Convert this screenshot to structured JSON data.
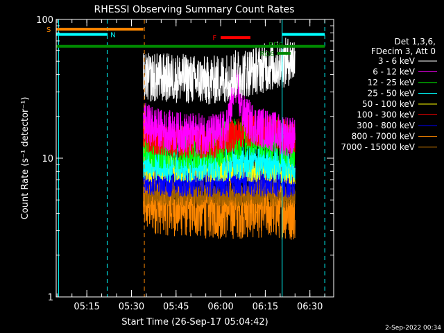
{
  "chart_data": {
    "type": "line",
    "title": "RHESSI Observing Summary Count Rates",
    "xlabel": "Start Time (26-Sep-17 05:04:42)",
    "ylabel": "Count Rate (s⁻¹ detector⁻¹)",
    "yscale": "log",
    "ylim": [
      1,
      100
    ],
    "y_ticks": [
      {
        "value": 1,
        "label": "1"
      },
      {
        "value": 10,
        "label": "10"
      },
      {
        "value": 100,
        "label": "100"
      }
    ],
    "xlim": [
      "05:04:42",
      "06:38:00"
    ],
    "x_ticks": [
      "05:15",
      "05:30",
      "05:45",
      "06:00",
      "06:15",
      "06:30"
    ],
    "grid": false,
    "legend_header": [
      "Det 1,3,6,",
      "FDecim 3, Att 0"
    ],
    "legend_position": "right",
    "series": [
      {
        "name": "3 - 6 keV",
        "color": "#ffffff",
        "x": [
          "05:34",
          "05:40",
          "05:45",
          "05:50",
          "05:55",
          "06:00",
          "06:05",
          "06:10",
          "06:15",
          "06:20",
          "06:23",
          "06:25"
        ],
        "values": [
          38,
          38,
          38,
          37,
          36,
          37,
          40,
          42,
          45,
          47,
          50,
          52
        ]
      },
      {
        "name": "6 - 12 keV",
        "color": "#ff00ff",
        "x": [
          "05:34",
          "05:40",
          "05:50",
          "05:58",
          "06:02",
          "06:04",
          "06:05",
          "06:06",
          "06:08",
          "06:12",
          "06:20",
          "06:25"
        ],
        "values": [
          18,
          16,
          15,
          15,
          16,
          26,
          36,
          28,
          20,
          17,
          15,
          14
        ]
      },
      {
        "name": "12 - 25 keV",
        "color": "#00ff00",
        "x": [
          "05:34",
          "05:40",
          "05:50",
          "05:58",
          "06:05",
          "06:10",
          "06:20",
          "06:25"
        ],
        "values": [
          13,
          12,
          12,
          12,
          14,
          15,
          13,
          12
        ]
      },
      {
        "name": "25 - 50 keV",
        "color": "#00ffff",
        "x": [
          "05:34",
          "05:40",
          "05:50",
          "06:00",
          "06:10",
          "06:20",
          "06:25"
        ],
        "values": [
          9.5,
          9.2,
          9,
          9.2,
          9.5,
          9.2,
          9
        ]
      },
      {
        "name": "50 - 100 keV",
        "color": "#ffff00",
        "x": [
          "05:34",
          "05:50",
          "06:05",
          "06:20",
          "06:25"
        ],
        "values": [
          8.5,
          8.3,
          8.6,
          8.3,
          8
        ]
      },
      {
        "name": "100 - 300 keV",
        "color": "#ff0000",
        "x": [
          "05:34",
          "05:40",
          "05:50",
          "05:58",
          "06:02",
          "06:07",
          "06:12",
          "06:18",
          "06:22",
          "06:25"
        ],
        "values": [
          14.5,
          13.5,
          13,
          13,
          14,
          15.5,
          16,
          15.5,
          14.5,
          13.5
        ]
      },
      {
        "name": "300 - 800 keV",
        "color": "#0000ff",
        "x": [
          "05:34",
          "05:45",
          "06:00",
          "06:15",
          "06:25"
        ],
        "values": [
          7.5,
          7.2,
          7.2,
          7.3,
          7
        ]
      },
      {
        "name": "800 - 7000 keV",
        "color": "#ff8800",
        "x": [
          "05:34",
          "05:45",
          "06:00",
          "06:15",
          "06:25"
        ],
        "values": [
          4.8,
          4.5,
          4.3,
          4.4,
          4.2
        ]
      },
      {
        "name": "7000 - 15000 keV",
        "color": "#a06000",
        "x": [
          "05:34",
          "05:45",
          "06:00",
          "06:15",
          "06:25"
        ],
        "values": [
          5.5,
          5.4,
          5.4,
          5.4,
          5.3
        ]
      }
    ],
    "annotations": [
      {
        "label": "S",
        "color": "#ff8800",
        "x_start": "05:04:42",
        "x_end": "05:34:00",
        "y": 85
      },
      {
        "label": "N",
        "color": "#00ffff",
        "x_start": "05:04:42",
        "x_end": "05:22:00",
        "y": 78
      },
      {
        "label": "",
        "color": "#00ffff",
        "x_start": "06:20:40",
        "x_end": "06:35:00",
        "y": 78
      },
      {
        "label": "F",
        "color": "#ff0000",
        "x_start": "06:00:00",
        "x_end": "06:10:00",
        "y": 74
      },
      {
        "label": "",
        "color": "#008800",
        "x_start": "05:04:42",
        "x_end": "06:35:00",
        "y": 64
      },
      {
        "label": "RD9",
        "color": "#008800",
        "x_start": "",
        "x_end": "",
        "y": 66
      },
      {
        "label": "RD6",
        "color": "#008800",
        "x_start": "06:19:00",
        "x_end": "06:23:30",
        "y": 57
      }
    ],
    "vertical_lines": [
      {
        "x": "05:05:30",
        "color": "#00ffff",
        "style": "solid"
      },
      {
        "x": "05:21:50",
        "color": "#00ffff",
        "style": "dashed"
      },
      {
        "x": "05:34:20",
        "color": "#ff8800",
        "style": "dashed"
      },
      {
        "x": "06:20:40",
        "color": "#00ffff",
        "style": "solid"
      },
      {
        "x": "06:35:00",
        "color": "#00ffff",
        "style": "dashed"
      }
    ]
  },
  "footer_timestamp": "2-Sep-2022 00:34"
}
